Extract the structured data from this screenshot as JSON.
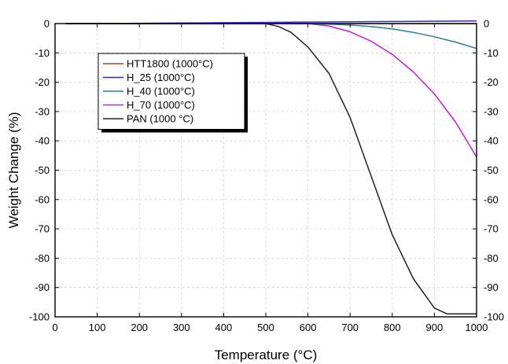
{
  "chart_data": {
    "type": "line",
    "xlabel": "Temperature (°C)",
    "ylabel": "Weight Change (%)",
    "xlim": [
      0,
      1000
    ],
    "ylim": [
      -100,
      0
    ],
    "x_ticks": [
      0,
      100,
      200,
      300,
      400,
      500,
      600,
      700,
      800,
      900,
      1000
    ],
    "y_ticks": [
      0,
      -10,
      -20,
      -30,
      -40,
      -50,
      -60,
      -70,
      -80,
      -90,
      -100
    ],
    "right_axis_ticks": [
      0,
      -10,
      -20,
      -30,
      -40,
      -50,
      -60,
      -70,
      -80,
      -90,
      -100
    ],
    "grid": "dashed",
    "legend_position": "top-left",
    "series": [
      {
        "name": "HTT1800 (1000°C)",
        "color": "#c0392b",
        "x": [
          25,
          100,
          200,
          300,
          400,
          500,
          600,
          700,
          800,
          900,
          1000
        ],
        "y": [
          0,
          0,
          0,
          0,
          0,
          0,
          0,
          0,
          0,
          0,
          0
        ]
      },
      {
        "name": "H_25 (1000°C)",
        "color": "#2a2ac8",
        "x": [
          25,
          100,
          200,
          300,
          400,
          500,
          600,
          700,
          800,
          900,
          1000
        ],
        "y": [
          0,
          0,
          0.1,
          0.2,
          0.3,
          0.4,
          0.5,
          0.6,
          0.7,
          0.8,
          0.9
        ]
      },
      {
        "name": "H_40 (1000°C)",
        "color": "#2e7d8c",
        "x": [
          25,
          100,
          200,
          300,
          400,
          500,
          600,
          650,
          700,
          750,
          800,
          850,
          900,
          950,
          1000
        ],
        "y": [
          0,
          0,
          0,
          0,
          0,
          0,
          0,
          -0.2,
          -0.5,
          -1,
          -1.8,
          -3,
          -4.5,
          -6.3,
          -8.5
        ]
      },
      {
        "name": "H_70 (1000°C)",
        "color": "#c21fcf",
        "x": [
          25,
          100,
          200,
          300,
          400,
          500,
          600,
          650,
          700,
          750,
          800,
          850,
          900,
          950,
          1000
        ],
        "y": [
          0,
          0,
          0,
          0,
          0,
          0,
          0,
          -0.8,
          -2.8,
          -6,
          -10.5,
          -16.5,
          -24,
          -33.5,
          -45.5
        ]
      },
      {
        "name": "PAN (1000 °C)",
        "color": "#222222",
        "x": [
          25,
          100,
          200,
          300,
          400,
          450,
          500,
          530,
          560,
          600,
          650,
          700,
          750,
          800,
          850,
          900,
          930,
          950,
          1000
        ],
        "y": [
          0,
          0,
          0,
          0,
          0,
          0,
          0,
          -1,
          -3,
          -8,
          -17,
          -32,
          -52,
          -72,
          -87,
          -97,
          -99,
          -99,
          -99
        ]
      }
    ]
  }
}
